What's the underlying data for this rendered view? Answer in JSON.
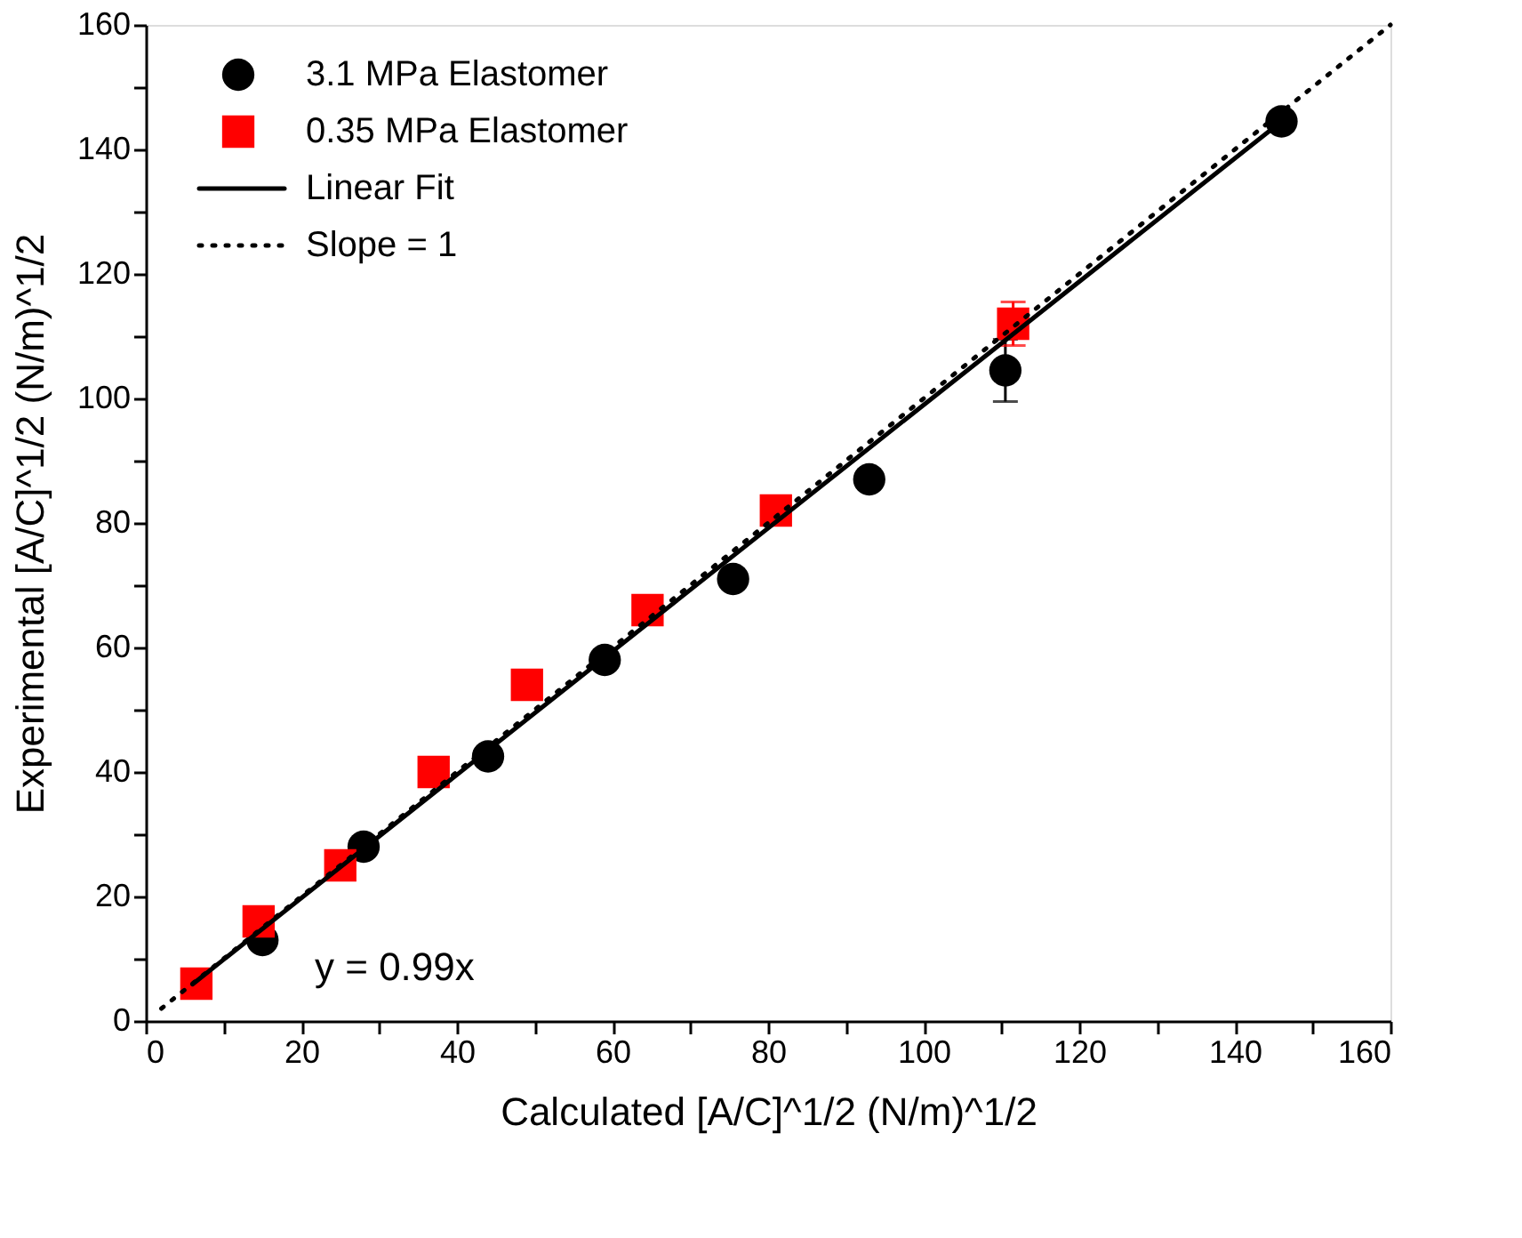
{
  "chart_data": {
    "type": "scatter",
    "xlabel": "Calculated [A/C]^1/2 (N/m)^1/2",
    "ylabel": "Experimental [A/C]^1/2 (N/m)^1/2",
    "xlim": [
      0,
      160
    ],
    "ylim": [
      0,
      160
    ],
    "xticks": [
      0,
      {
        "value": 10,
        "label": null
      },
      20,
      {
        "value": 30,
        "label": null
      },
      40,
      {
        "value": 50,
        "label": null
      },
      60,
      {
        "value": 70,
        "label": null
      },
      80,
      {
        "value": 90,
        "label": null
      },
      100,
      {
        "value": 110,
        "label": null
      },
      120,
      {
        "value": 130,
        "label": null
      },
      140,
      {
        "value": 150,
        "label": null
      },
      160
    ],
    "yticks": [
      0,
      {
        "value": 10,
        "label": null
      },
      20,
      {
        "value": 30,
        "label": null
      },
      40,
      {
        "value": 50,
        "label": null
      },
      60,
      {
        "value": 70,
        "label": null
      },
      80,
      {
        "value": 90,
        "label": null
      },
      100,
      {
        "value": 110,
        "label": null
      },
      120,
      {
        "value": 130,
        "label": null
      },
      140,
      {
        "value": 150,
        "label": null
      },
      160
    ],
    "grid": false,
    "legend": "top left",
    "annotations": [
      "y = 0.99x"
    ],
    "series": [
      {
        "name": "3.1 MPa Elastomer",
        "type": "scatter",
        "marker": "circle",
        "color": "#000000",
        "x": [
          15,
          28,
          44,
          59,
          75.5,
          93,
          110.5,
          146
        ],
        "values": [
          13,
          28,
          42.5,
          58,
          71,
          87,
          104.5,
          144.5
        ],
        "errors": [
          null,
          null,
          null,
          null,
          null,
          null,
          5,
          1.5
        ]
      },
      {
        "name": "0.35 MPa Elastomer",
        "type": "scatter",
        "marker": "square",
        "color": "#ff0000",
        "x": [
          6.5,
          14.5,
          25,
          37,
          49,
          64.5,
          81,
          111.5
        ],
        "values": [
          6,
          16,
          25,
          40,
          54,
          66,
          82,
          112
        ],
        "errors": [
          null,
          null,
          null,
          null,
          null,
          null,
          null,
          3.5
        ]
      },
      {
        "name": "Linear Fit",
        "type": "line",
        "line_style": "solid",
        "color": "#000000",
        "x": [
          6,
          146
        ],
        "values": [
          5.9,
          144.5
        ]
      },
      {
        "name": "Slope = 1",
        "type": "line",
        "line_style": "dotted",
        "color": "#000000",
        "x": [
          2,
          160
        ],
        "values": [
          2,
          160
        ]
      }
    ]
  }
}
